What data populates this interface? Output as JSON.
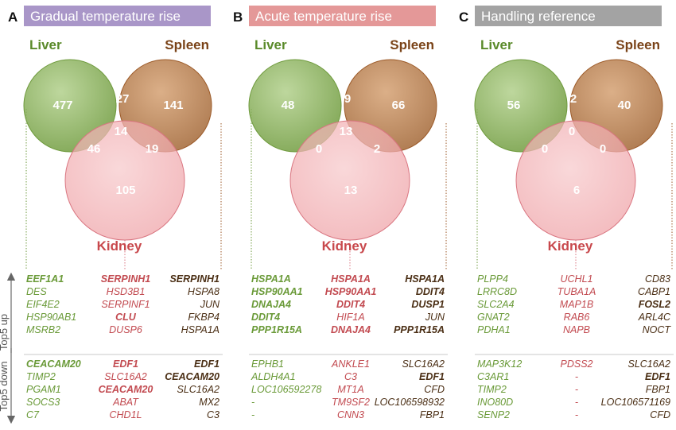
{
  "panels": [
    {
      "letter": "A",
      "title": "Gradual temperature rise",
      "header_color": "#a996c8",
      "labels": {
        "liver": "Liver",
        "spleen": "Spleen",
        "kidney": "Kidney"
      },
      "counts": {
        "liver_only": "477",
        "spleen_only": "141",
        "kidney_only": "105",
        "liver_spleen": "27",
        "liver_kidney": "46",
        "spleen_kidney": "19",
        "all": "14"
      },
      "up": {
        "liver": [
          {
            "t": "EEF1A1",
            "b": true
          },
          {
            "t": "DES",
            "b": false
          },
          {
            "t": "EIF4E2",
            "b": false
          },
          {
            "t": "HSP90AB1",
            "b": false
          },
          {
            "t": "MSRB2",
            "b": false
          }
        ],
        "kidney": [
          {
            "t": "SERPINH1",
            "b": true
          },
          {
            "t": "HSD3B1",
            "b": false
          },
          {
            "t": "SERPINF1",
            "b": false
          },
          {
            "t": "CLU",
            "b": true
          },
          {
            "t": "DUSP6",
            "b": false
          }
        ],
        "spleen": [
          {
            "t": "SERPINH1",
            "b": true
          },
          {
            "t": "HSPA8",
            "b": false
          },
          {
            "t": "JUN",
            "b": false
          },
          {
            "t": "FKBP4",
            "b": false
          },
          {
            "t": "HSPA1A",
            "b": false
          }
        ]
      },
      "down": {
        "liver": [
          {
            "t": "CEACAM20",
            "b": true
          },
          {
            "t": "TIMP2",
            "b": false
          },
          {
            "t": "PGAM1",
            "b": false
          },
          {
            "t": "SOCS3",
            "b": false
          },
          {
            "t": "C7",
            "b": false
          }
        ],
        "kidney": [
          {
            "t": "EDF1",
            "b": true
          },
          {
            "t": "SLC16A2",
            "b": false
          },
          {
            "t": "CEACAM20",
            "b": true
          },
          {
            "t": "ABAT",
            "b": false
          },
          {
            "t": "CHD1L",
            "b": false
          }
        ],
        "spleen": [
          {
            "t": "EDF1",
            "b": true
          },
          {
            "t": "CEACAM20",
            "b": true
          },
          {
            "t": "SLC16A2",
            "b": false
          },
          {
            "t": "MX2",
            "b": false
          },
          {
            "t": "C3",
            "b": false
          }
        ]
      }
    },
    {
      "letter": "B",
      "title": "Acute temperature rise",
      "header_color": "#e49898",
      "labels": {
        "liver": "Liver",
        "spleen": "Spleen",
        "kidney": "Kidney"
      },
      "counts": {
        "liver_only": "48",
        "spleen_only": "66",
        "kidney_only": "13",
        "liver_spleen": "9",
        "liver_kidney": "0",
        "spleen_kidney": "2",
        "all": "13"
      },
      "up": {
        "liver": [
          {
            "t": "HSPA1A",
            "b": true
          },
          {
            "t": "HSP90AA1",
            "b": true
          },
          {
            "t": "DNAJA4",
            "b": true
          },
          {
            "t": "DDIT4",
            "b": true
          },
          {
            "t": "PPP1R15A",
            "b": true
          }
        ],
        "kidney": [
          {
            "t": "HSPA1A",
            "b": true
          },
          {
            "t": "HSP90AA1",
            "b": true
          },
          {
            "t": "DDIT4",
            "b": true
          },
          {
            "t": "HIF1A",
            "b": false
          },
          {
            "t": "DNAJA4",
            "b": true
          }
        ],
        "spleen": [
          {
            "t": "HSPA1A",
            "b": true
          },
          {
            "t": "DDIT4",
            "b": true
          },
          {
            "t": "DUSP1",
            "b": true
          },
          {
            "t": "JUN",
            "b": false
          },
          {
            "t": "PPP1R15A",
            "b": true
          }
        ]
      },
      "down": {
        "liver": [
          {
            "t": "EPHB1",
            "b": false
          },
          {
            "t": "ALDH4A1",
            "b": false
          },
          {
            "t": "LOC106592278",
            "b": false
          },
          {
            "t": "-",
            "b": false
          },
          {
            "t": "-",
            "b": false
          }
        ],
        "kidney": [
          {
            "t": "ANKLE1",
            "b": false
          },
          {
            "t": "C3",
            "b": false
          },
          {
            "t": "MT1A",
            "b": false
          },
          {
            "t": "TM9SF2",
            "b": false
          },
          {
            "t": "CNN3",
            "b": false
          }
        ],
        "spleen": [
          {
            "t": "SLC16A2",
            "b": false
          },
          {
            "t": "EDF1",
            "b": true
          },
          {
            "t": "CFD",
            "b": false
          },
          {
            "t": "LOC106598932",
            "b": false
          },
          {
            "t": "FBP1",
            "b": false
          }
        ]
      }
    },
    {
      "letter": "C",
      "title": "Handling reference",
      "header_color": "#a3a3a3",
      "labels": {
        "liver": "Liver",
        "spleen": "Spleen",
        "kidney": "Kidney"
      },
      "counts": {
        "liver_only": "56",
        "spleen_only": "40",
        "kidney_only": "6",
        "liver_spleen": "2",
        "liver_kidney": "0",
        "spleen_kidney": "0",
        "all": "0"
      },
      "up": {
        "liver": [
          {
            "t": "PLPP4",
            "b": false
          },
          {
            "t": "LRRC8D",
            "b": false
          },
          {
            "t": "SLC2A4",
            "b": false
          },
          {
            "t": "GNAT2",
            "b": false
          },
          {
            "t": "PDHA1",
            "b": false
          }
        ],
        "kidney": [
          {
            "t": "UCHL1",
            "b": false
          },
          {
            "t": "TUBA1A",
            "b": false
          },
          {
            "t": "MAP1B",
            "b": false
          },
          {
            "t": "RAB6",
            "b": false
          },
          {
            "t": "NAPB",
            "b": false
          }
        ],
        "spleen": [
          {
            "t": "CD83",
            "b": false
          },
          {
            "t": "CABP1",
            "b": false
          },
          {
            "t": "FOSL2",
            "b": true
          },
          {
            "t": "ARL4C",
            "b": false
          },
          {
            "t": "NOCT",
            "b": false
          }
        ]
      },
      "down": {
        "liver": [
          {
            "t": "MAP3K12",
            "b": false
          },
          {
            "t": "C3AR1",
            "b": false
          },
          {
            "t": "TIMP2",
            "b": false
          },
          {
            "t": "INO80D",
            "b": false
          },
          {
            "t": "SENP2",
            "b": false
          }
        ],
        "kidney": [
          {
            "t": "PDSS2",
            "b": false
          },
          {
            "t": "-",
            "b": false
          },
          {
            "t": "-",
            "b": false
          },
          {
            "t": "-",
            "b": false
          },
          {
            "t": "-",
            "b": false
          }
        ],
        "spleen": [
          {
            "t": "SLC16A2",
            "b": false
          },
          {
            "t": "EDF1",
            "b": true
          },
          {
            "t": "FBP1",
            "b": false
          },
          {
            "t": "LOC106571169",
            "b": false
          },
          {
            "t": "CFD",
            "b": false
          }
        ]
      }
    }
  ],
  "axis": {
    "up_label": "Top5 up",
    "down_label": "Top5 down"
  },
  "colors": {
    "liver_text": "#5a8a2a",
    "spleen_text": "#7a4318",
    "kidney_text": "#c8484c",
    "liver_fill": "#7fab4f",
    "spleen_fill": "#b47238",
    "kidney_fill": "#ef9aa0",
    "liver_stroke": "#6e9a3c",
    "spleen_stroke": "#9c5a28",
    "kidney_stroke": "#d97580",
    "liver_gene": "#6a9a38",
    "kidney_gene": "#c24a50",
    "spleen_gene": "#4a2e14"
  }
}
